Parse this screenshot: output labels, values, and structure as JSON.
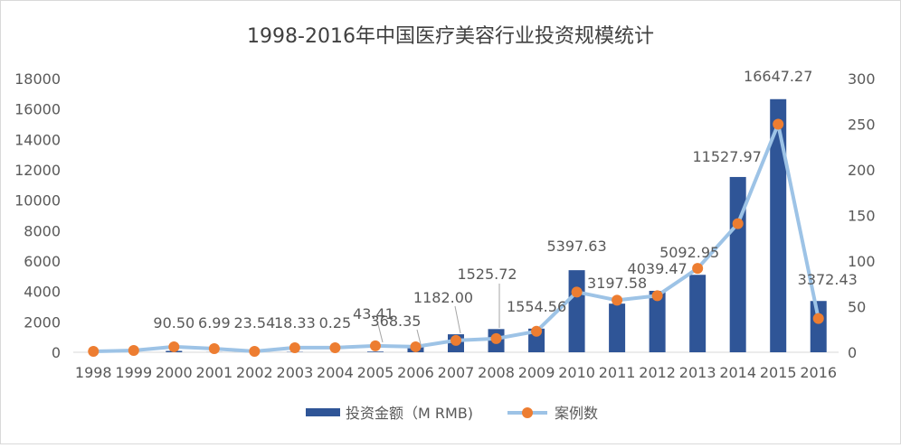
{
  "chart_data": {
    "type": "bar",
    "title": "1998-2016年中国医疗美容行业投资规模统计",
    "categories": [
      "1998",
      "1999",
      "2000",
      "2001",
      "2002",
      "2003",
      "2004",
      "2005",
      "2006",
      "2007",
      "2008",
      "2009",
      "2010",
      "2011",
      "2012",
      "2013",
      "2014",
      "2015",
      "2016"
    ],
    "series": [
      {
        "name": "投资金额（M RMB)",
        "type": "bar",
        "axis": "left",
        "color": "#2F5597",
        "values": [
          0,
          0,
          90.5,
          6.99,
          23.54,
          18.33,
          0.25,
          43.41,
          368.35,
          1182.0,
          1525.72,
          1554.56,
          5397.63,
          3197.58,
          4039.47,
          5092.95,
          11527.97,
          16647.27,
          3372.43
        ],
        "labels": [
          "",
          "",
          "90.50",
          "6.99",
          "23.54",
          "18.33",
          "0.25",
          "43.41",
          "368.35",
          "1182.00",
          "1525.72",
          "1554.56",
          "5397.63",
          "3197.58",
          "4039.47",
          "5092.95",
          "11527.97",
          "16647.27",
          "3372.43"
        ]
      },
      {
        "name": "案例数",
        "type": "line",
        "axis": "right",
        "line_color": "#9DC3E6",
        "marker_color": "#ED7D31",
        "values": [
          1,
          2,
          6,
          4,
          1,
          5,
          5,
          7,
          6,
          13,
          15,
          23,
          66,
          57,
          62,
          92,
          141,
          250,
          37
        ]
      }
    ],
    "y_left": {
      "min": 0,
      "max": 18000,
      "step": 2000
    },
    "y_right": {
      "min": 0,
      "max": 300,
      "step": 50
    },
    "grid": false,
    "legend_position": "bottom"
  }
}
